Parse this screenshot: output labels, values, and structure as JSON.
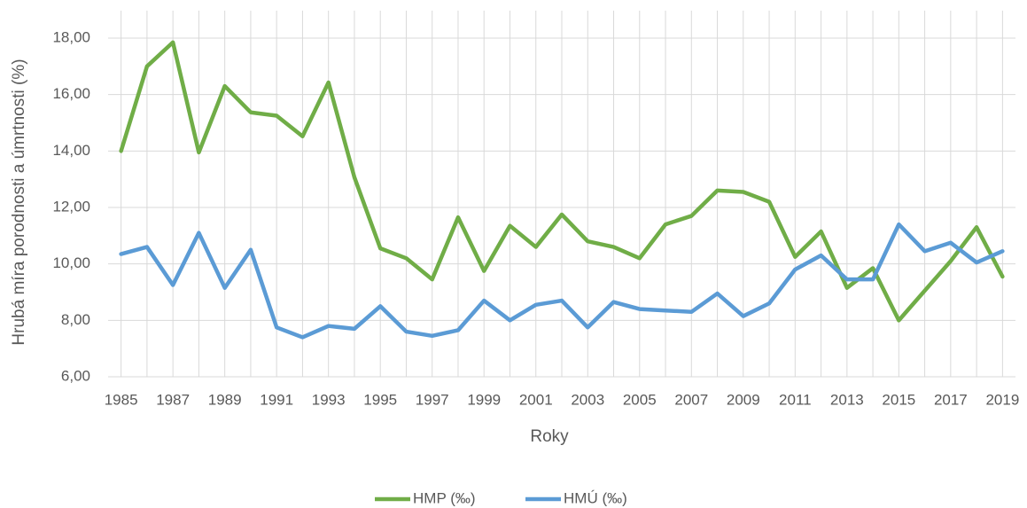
{
  "chart_data": {
    "type": "line",
    "y_label": "Hrubá míra porodnosti a úmrtnosti (%)",
    "x_label": "Roky",
    "categories": [
      "1985",
      null,
      "1987",
      null,
      "1989",
      null,
      "1991",
      null,
      "1993",
      null,
      "1995",
      null,
      "1997",
      null,
      "1999",
      null,
      "2001",
      null,
      "2003",
      null,
      "2005",
      null,
      "2007",
      null,
      "2009",
      null,
      "2011",
      null,
      "2013",
      null,
      "2015",
      null,
      "2017",
      null,
      "2019"
    ],
    "series": [
      {
        "name": "HMP (‰)",
        "color": "#70ad47",
        "values": [
          14.0,
          17.0,
          17.85,
          13.95,
          16.3,
          15.37,
          15.25,
          14.52,
          16.43,
          13.07,
          10.55,
          10.2,
          9.45,
          11.65,
          9.75,
          11.35,
          10.6,
          11.75,
          10.8,
          10.6,
          10.2,
          11.4,
          11.7,
          12.6,
          12.55,
          12.2,
          10.25,
          11.15,
          9.15,
          9.85,
          8.0,
          9.05,
          10.1,
          11.3,
          9.55
        ]
      },
      {
        "name": "HMÚ (‰)",
        "color": "#5b9bd5",
        "values": [
          10.35,
          10.6,
          9.25,
          11.1,
          9.15,
          10.5,
          7.75,
          7.4,
          7.8,
          7.7,
          8.5,
          7.6,
          7.45,
          7.65,
          8.7,
          8.0,
          8.55,
          8.7,
          7.75,
          8.65,
          8.4,
          8.35,
          8.3,
          8.95,
          8.15,
          8.6,
          9.8,
          10.3,
          9.45,
          9.45,
          11.4,
          10.45,
          10.75,
          10.05,
          10.45
        ]
      }
    ],
    "ylim": [
      6,
      18
    ],
    "yticks": [
      {
        "value": 6,
        "label": "6,00"
      },
      {
        "value": 8,
        "label": "8,00"
      },
      {
        "value": 10,
        "label": "10,00"
      },
      {
        "value": 12,
        "label": "12,00"
      },
      {
        "value": 14,
        "label": "14,00"
      },
      {
        "value": 16,
        "label": "16,00"
      },
      {
        "value": 18,
        "label": "18,00"
      }
    ],
    "grid": true,
    "legend": "bottom"
  }
}
